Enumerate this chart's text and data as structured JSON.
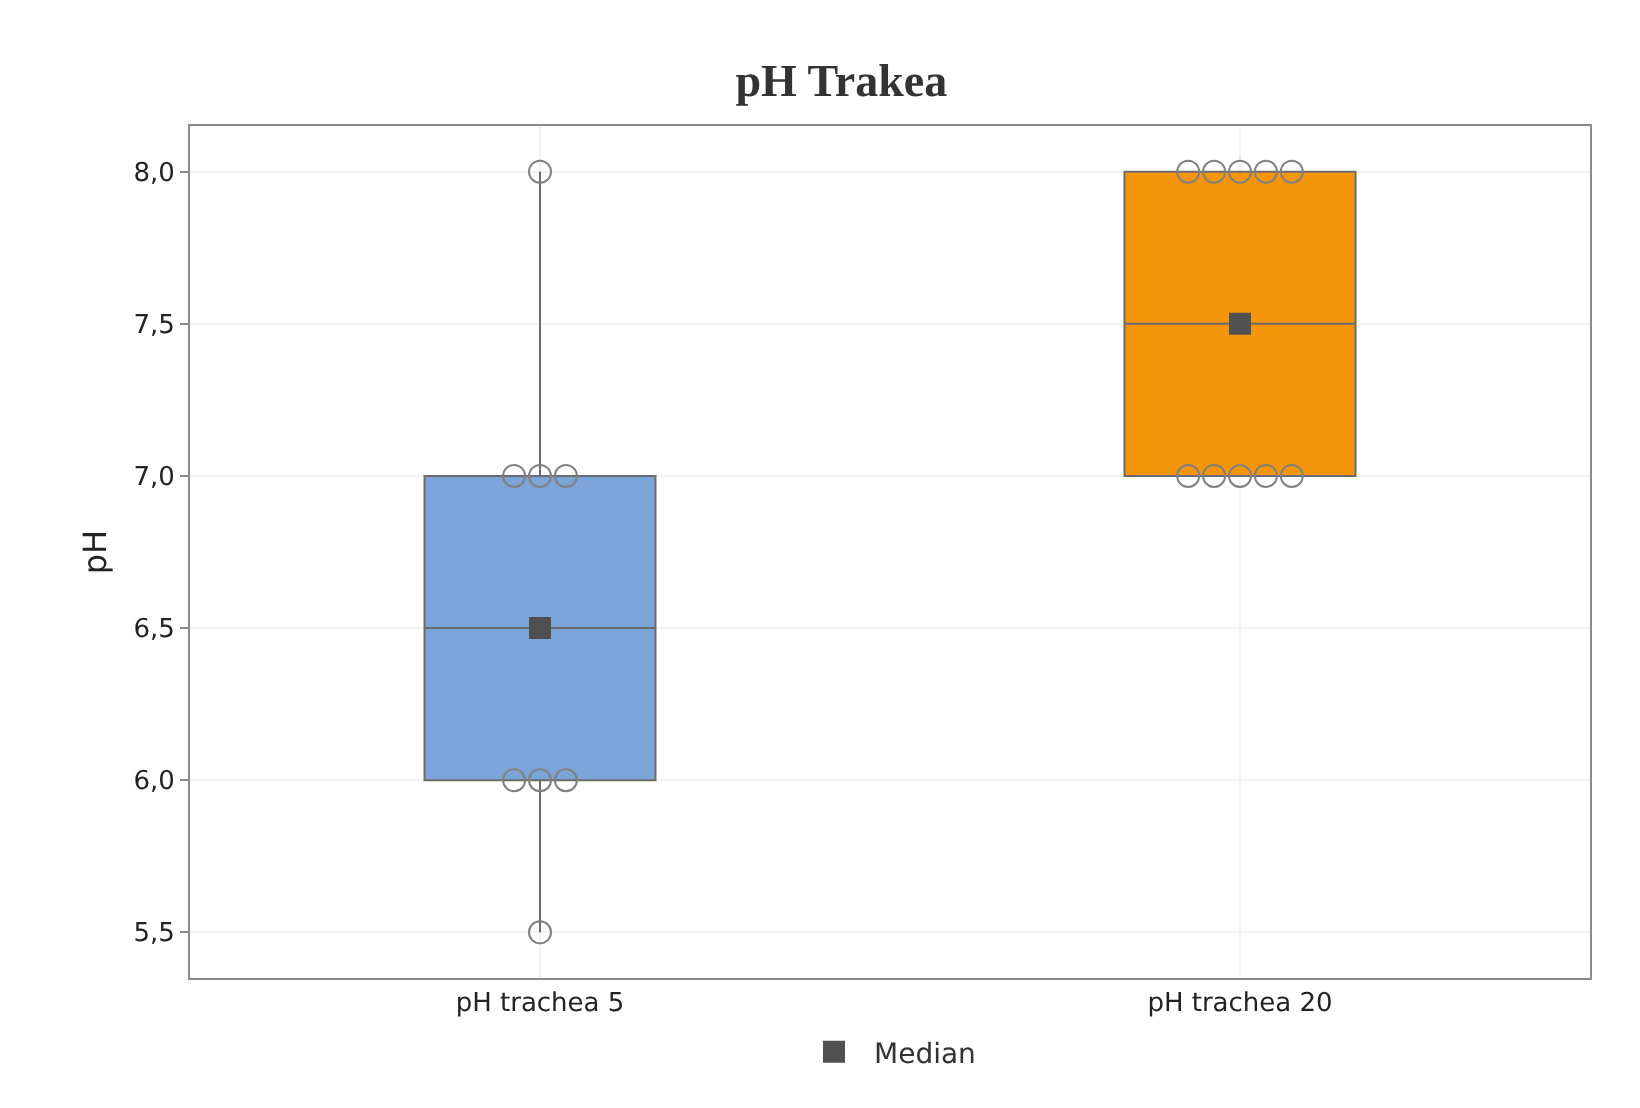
{
  "chart_data": {
    "type": "box",
    "title": "pH Trakea",
    "ylabel": "pH",
    "categories": [
      "pH trachea 5",
      "pH trachea 20"
    ],
    "boxes": [
      {
        "low": 5.5,
        "q1": 6,
        "median": 6.5,
        "q3": 7,
        "high": 8
      },
      {
        "low": 7,
        "q1": 7,
        "median": 7.5,
        "q3": 8,
        "high": 8
      }
    ],
    "colors": [
      "#7ba5d9",
      "#f5960a"
    ],
    "series": [
      {
        "type": "scatter",
        "marker": "circle",
        "color": "#808080",
        "x": [
          "pH trachea 5",
          "pH trachea 5",
          "pH trachea 5",
          "pH trachea 5",
          "pH trachea 5",
          "pH trachea 5",
          "pH trachea 5",
          "pH trachea 5",
          "pH trachea 20",
          "pH trachea 20",
          "pH trachea 20",
          "pH trachea 20",
          "pH trachea 20",
          "pH trachea 20",
          "pH trachea 20",
          "pH trachea 20",
          "pH trachea 20",
          "pH trachea 20"
        ],
        "values": [
          8,
          7,
          7,
          7,
          6,
          6,
          6,
          5.5,
          8,
          8,
          8,
          8,
          8,
          7,
          7,
          7,
          7,
          7
        ]
      },
      {
        "type": "scatter",
        "name": "Median",
        "marker": "square",
        "color": "#505050",
        "x": [
          "pH trachea 5",
          "pH trachea 20"
        ],
        "values": [
          6.5,
          7.5
        ]
      }
    ],
    "ylim": [
      5.35,
      8.15
    ],
    "yticks": [
      {
        "value": 5.5,
        "label": "5,5"
      },
      {
        "value": 6,
        "label": "6,0"
      },
      {
        "value": 6.5,
        "label": "6,5"
      },
      {
        "value": 7,
        "label": "7,0"
      },
      {
        "value": 7.5,
        "label": "7,5"
      },
      {
        "value": 8,
        "label": "8,0"
      }
    ],
    "grid": true,
    "legend": "bottom"
  }
}
